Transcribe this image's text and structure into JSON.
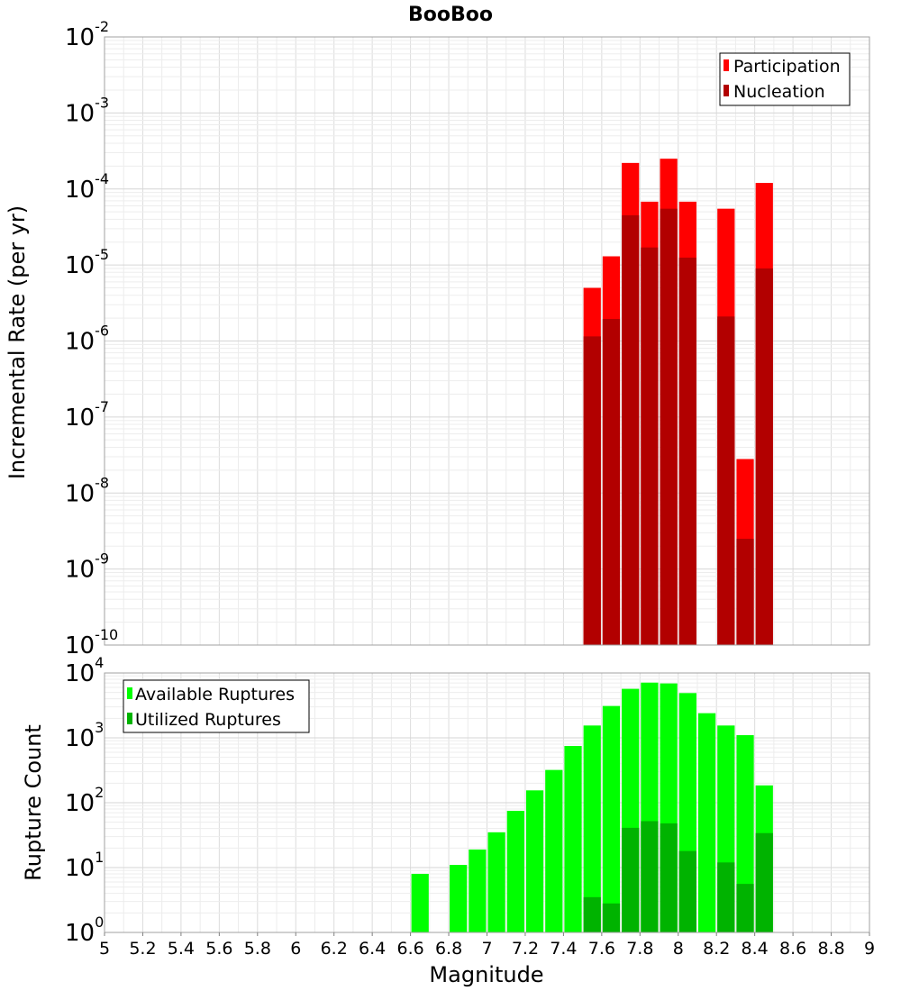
{
  "chart_data": [
    {
      "type": "bar",
      "title": "BooBoo",
      "ylabel": "Incremental Rate (per yr)",
      "xlabel": "",
      "yscale": "log",
      "ylim": [
        1e-10,
        0.01
      ],
      "xlim": [
        5,
        9
      ],
      "legend": {
        "placement": "top-right",
        "entries": [
          "Participation",
          "Nucleation"
        ]
      },
      "grid": true,
      "x": [
        7.55,
        7.65,
        7.75,
        7.85,
        7.95,
        8.05,
        8.25,
        8.35,
        8.45
      ],
      "series": [
        {
          "name": "Participation",
          "color": "#ff0000",
          "values": [
            5e-06,
            1.3e-05,
            0.00022,
            6.8e-05,
            0.00025,
            6.8e-05,
            5.5e-05,
            2.8e-08,
            0.00012
          ]
        },
        {
          "name": "Nucleation",
          "color": "#b20000",
          "values": [
            1.15e-06,
            1.95e-06,
            4.5e-05,
            1.7e-05,
            5.5e-05,
            1.25e-05,
            2.1e-06,
            2.5e-09,
            9e-06
          ]
        }
      ]
    },
    {
      "type": "bar",
      "title": "",
      "ylabel": "Rupture Count",
      "xlabel": "Magnitude",
      "yscale": "log",
      "ylim": [
        1,
        10000
      ],
      "xlim": [
        5,
        9
      ],
      "xticks": [
        "5",
        "5.2",
        "5.4",
        "5.6",
        "5.8",
        "6",
        "6.2",
        "6.4",
        "6.6",
        "6.8",
        "7",
        "7.2",
        "7.4",
        "7.6",
        "7.8",
        "8",
        "8.2",
        "8.4",
        "8.6",
        "8.8",
        "9"
      ],
      "legend": {
        "placement": "top-left",
        "entries": [
          "Available Ruptures",
          "Utilized Ruptures"
        ]
      },
      "grid": true,
      "x": [
        6.65,
        6.85,
        6.95,
        7.05,
        7.15,
        7.25,
        7.35,
        7.45,
        7.55,
        7.65,
        7.75,
        7.85,
        7.95,
        8.05,
        8.15,
        8.25,
        8.35,
        8.45
      ],
      "series": [
        {
          "name": "Available Ruptures",
          "color": "#00ff00",
          "values": [
            8,
            11,
            19,
            35,
            75,
            155,
            320,
            750,
            1550,
            3100,
            5700,
            7100,
            6900,
            4900,
            2400,
            1550,
            1100,
            185
          ]
        },
        {
          "name": "Utilized Ruptures",
          "color": "#00b300",
          "values": [
            null,
            null,
            null,
            null,
            null,
            null,
            null,
            null,
            3.5,
            2.8,
            41,
            52,
            48,
            18,
            null,
            12,
            5.6,
            34
          ]
        }
      ]
    }
  ]
}
